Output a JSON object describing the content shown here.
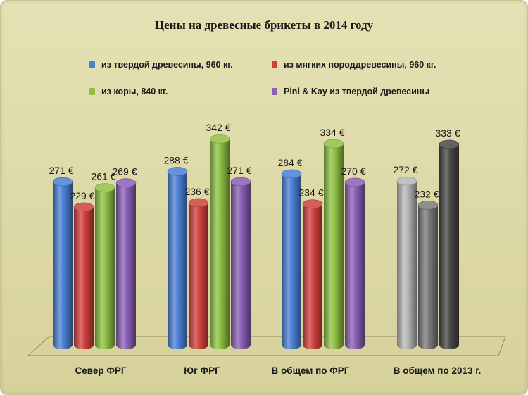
{
  "chart_data": {
    "type": "bar",
    "title": "Цены на древесные брикеты в 2014 году",
    "categories": [
      "Север ФРГ",
      "Юг ФРГ",
      "В общем по ФРГ",
      "В общем по 2013 г."
    ],
    "series": [
      {
        "name": "из твердой древесины, 960 кг.",
        "color": "#4a7fd4",
        "values": [
          271,
          288,
          284,
          null
        ]
      },
      {
        "name": "из мягких породдревесины, 960 кг.",
        "color": "#d0403c",
        "values": [
          229,
          236,
          234,
          null
        ]
      },
      {
        "name": "из коры, 840 кг.",
        "color": "#8fc043",
        "values": [
          261,
          342,
          334,
          null
        ]
      },
      {
        "name": "Pini & Kay из твердой древесины",
        "color": "#8a5fb6",
        "values": [
          269,
          271,
          270,
          null
        ]
      }
    ],
    "extra_bars": {
      "category": "В общем по 2013 г.",
      "values": [
        272,
        232,
        333
      ],
      "colors": [
        "#b5b5b5",
        "#7a7a7a",
        "#474747"
      ]
    },
    "value_suffix": " €",
    "ylim": [
      0,
      360
    ],
    "grid": false,
    "legend_position": "top"
  }
}
